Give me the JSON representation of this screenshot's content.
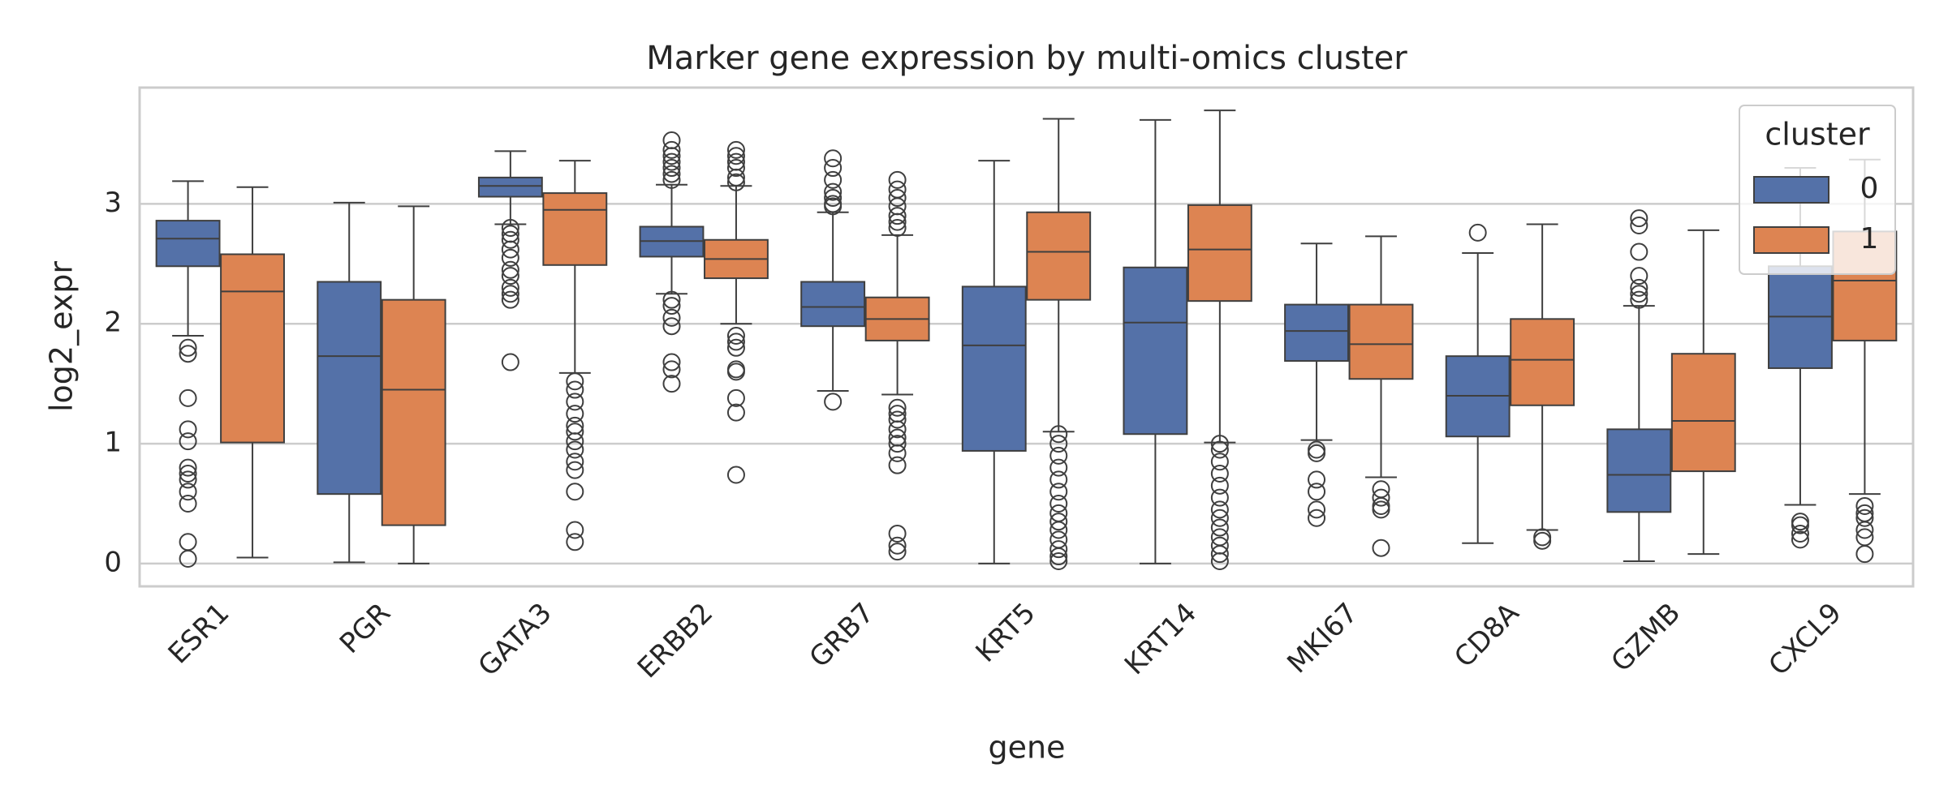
{
  "chart_data": {
    "type": "box",
    "title": "Marker gene expression by multi-omics cluster",
    "xlabel": "gene",
    "ylabel": "log2_expr",
    "categories": [
      "ESR1",
      "PGR",
      "GATA3",
      "ERBB2",
      "GRB7",
      "KRT5",
      "KRT14",
      "MKI67",
      "CD8A",
      "GZMB",
      "CXCL9"
    ],
    "ylim": [
      -0.19,
      3.97
    ],
    "yticks": [
      0,
      1,
      2,
      3
    ],
    "grid": true,
    "legend_title": "cluster",
    "legend": "upper right",
    "series": [
      {
        "name": "0",
        "color": "#5471a8",
        "boxes": [
          {
            "whislo": 1.9,
            "q1": 2.48,
            "med": 2.71,
            "q3": 2.86,
            "whishi": 3.19,
            "fliers": [
              1.8,
              1.75,
              1.38,
              1.12,
              1.02,
              0.8,
              0.75,
              0.7,
              0.6,
              0.5,
              0.18,
              0.04
            ]
          },
          {
            "whislo": 0.01,
            "q1": 0.58,
            "med": 1.73,
            "q3": 2.35,
            "whishi": 3.01,
            "fliers": []
          },
          {
            "whislo": 2.83,
            "q1": 3.06,
            "med": 3.15,
            "q3": 3.22,
            "whishi": 3.44,
            "fliers": [
              2.8,
              2.75,
              2.7,
              2.62,
              2.55,
              2.45,
              2.4,
              2.3,
              2.25,
              2.2,
              1.68
            ]
          },
          {
            "whislo": 2.25,
            "q1": 2.56,
            "med": 2.69,
            "q3": 2.81,
            "whishi": 3.16,
            "fliers": [
              3.53,
              3.45,
              3.4,
              3.35,
              3.3,
              3.25,
              3.2,
              2.2,
              2.15,
              2.05,
              1.98,
              1.68,
              1.62,
              1.5
            ]
          },
          {
            "whislo": 1.44,
            "q1": 1.98,
            "med": 2.14,
            "q3": 2.35,
            "whishi": 2.93,
            "fliers": [
              3.38,
              3.3,
              3.2,
              3.1,
              3.05,
              3.0,
              2.98,
              1.35
            ]
          },
          {
            "whislo": 0,
            "q1": 0.94,
            "med": 1.82,
            "q3": 2.31,
            "whishi": 3.36,
            "fliers": []
          },
          {
            "whislo": 0,
            "q1": 1.08,
            "med": 2.01,
            "q3": 2.47,
            "whishi": 3.7,
            "fliers": []
          },
          {
            "whislo": 1.03,
            "q1": 1.69,
            "med": 1.94,
            "q3": 2.16,
            "whishi": 2.67,
            "fliers": [
              0.95,
              0.92,
              0.7,
              0.6,
              0.45,
              0.38
            ]
          },
          {
            "whislo": 0.17,
            "q1": 1.06,
            "med": 1.4,
            "q3": 1.73,
            "whishi": 2.59,
            "fliers": [
              2.76
            ]
          },
          {
            "whislo": 0.02,
            "q1": 0.43,
            "med": 0.74,
            "q3": 1.12,
            "whishi": 2.15,
            "fliers": [
              2.88,
              2.82,
              2.6,
              2.4,
              2.3,
              2.25,
              2.2
            ]
          },
          {
            "whislo": 0.49,
            "q1": 1.63,
            "med": 2.06,
            "q3": 2.48,
            "whishi": 3.3,
            "fliers": [
              0.35,
              0.32,
              0.25,
              0.2
            ]
          }
        ]
      },
      {
        "name": "1",
        "color": "#dd8452",
        "boxes": [
          {
            "whislo": 0.05,
            "q1": 1.01,
            "med": 2.27,
            "q3": 2.58,
            "whishi": 3.14,
            "fliers": []
          },
          {
            "whislo": 0,
            "q1": 0.32,
            "med": 1.45,
            "q3": 2.2,
            "whishi": 2.98,
            "fliers": []
          },
          {
            "whislo": 1.59,
            "q1": 2.49,
            "med": 2.95,
            "q3": 3.09,
            "whishi": 3.36,
            "fliers": [
              1.52,
              1.45,
              1.35,
              1.25,
              1.15,
              1.1,
              1.02,
              0.95,
              0.85,
              0.78,
              0.6,
              0.28,
              0.18
            ]
          },
          {
            "whislo": 2.0,
            "q1": 2.38,
            "med": 2.54,
            "q3": 2.7,
            "whishi": 3.15,
            "fliers": [
              3.45,
              3.4,
              3.35,
              3.3,
              3.22,
              3.18,
              1.9,
              1.85,
              1.8,
              1.62,
              1.6,
              1.38,
              1.26,
              0.74
            ]
          },
          {
            "whislo": 1.41,
            "q1": 1.86,
            "med": 2.04,
            "q3": 2.22,
            "whishi": 2.74,
            "fliers": [
              3.2,
              3.12,
              3.05,
              2.98,
              2.9,
              2.85,
              2.8,
              1.3,
              1.25,
              1.2,
              1.12,
              1.05,
              1.0,
              0.92,
              0.82,
              0.25,
              0.15,
              0.1
            ]
          },
          {
            "whislo": 1.1,
            "q1": 2.2,
            "med": 2.6,
            "q3": 2.93,
            "whishi": 3.71,
            "fliers": [
              1.08,
              1.0,
              0.9,
              0.8,
              0.7,
              0.6,
              0.5,
              0.42,
              0.35,
              0.28,
              0.2,
              0.12,
              0.06,
              0.02
            ]
          },
          {
            "whislo": 1.01,
            "q1": 2.19,
            "med": 2.62,
            "q3": 2.99,
            "whishi": 3.78,
            "fliers": [
              1.0,
              0.95,
              0.85,
              0.75,
              0.65,
              0.55,
              0.45,
              0.38,
              0.3,
              0.22,
              0.15,
              0.08,
              0.02
            ]
          },
          {
            "whislo": 0.72,
            "q1": 1.54,
            "med": 1.83,
            "q3": 2.16,
            "whishi": 2.73,
            "fliers": [
              0.62,
              0.55,
              0.48,
              0.45,
              0.13
            ]
          },
          {
            "whislo": 0.28,
            "q1": 1.32,
            "med": 1.7,
            "q3": 2.04,
            "whishi": 2.83,
            "fliers": [
              0.22,
              0.19
            ]
          },
          {
            "whislo": 0.08,
            "q1": 0.77,
            "med": 1.19,
            "q3": 1.75,
            "whishi": 2.78,
            "fliers": []
          },
          {
            "whislo": 0.58,
            "q1": 1.86,
            "med": 2.36,
            "q3": 2.77,
            "whishi": 3.37,
            "fliers": [
              0.48,
              0.42,
              0.38,
              0.28,
              0.22,
              0.08
            ]
          }
        ]
      }
    ]
  }
}
